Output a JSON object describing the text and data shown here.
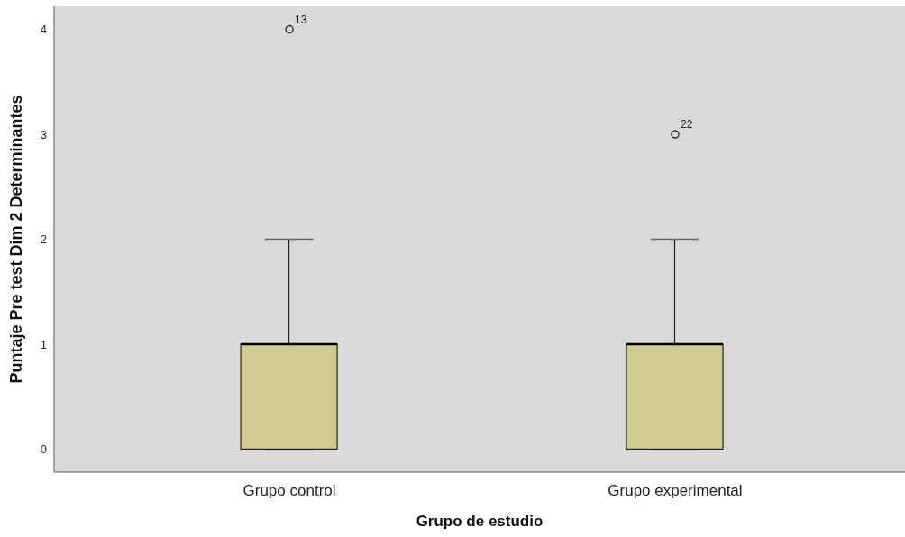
{
  "chart_data": {
    "type": "box",
    "xlabel": "Grupo de estudio",
    "ylabel": "Puntaje Pre test Dim 2 Determinantes",
    "categories": [
      "Grupo control",
      "Grupo experimental"
    ],
    "boxes": [
      {
        "low": 0,
        "q1": 0,
        "median": 1,
        "q3": 1,
        "high": 2,
        "outliers": [
          4
        ]
      },
      {
        "low": 0,
        "q1": 0,
        "median": 1,
        "q3": 1,
        "high": 2,
        "outliers": [
          3
        ]
      }
    ],
    "color": "#d0cb91",
    "ylim": [
      -0.22,
      4.22
    ],
    "yticks": [
      0,
      1,
      2,
      3,
      4
    ],
    "annotations": [
      "13",
      "22"
    ]
  }
}
